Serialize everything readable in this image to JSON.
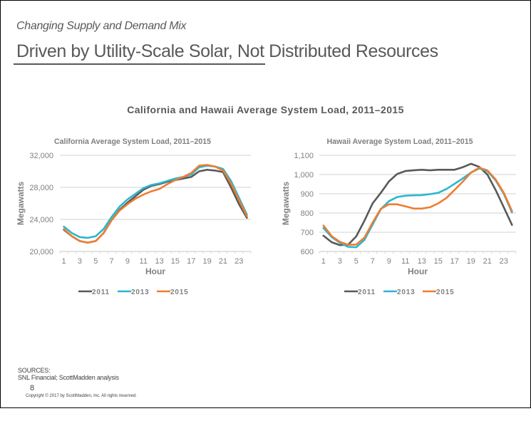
{
  "header": {
    "kicker": "Changing Supply and Demand Mix",
    "headline": "Driven by Utility-Scale Solar, Not Distributed Resources"
  },
  "main_title": "California and Hawaii Average System Load, 2011–2015",
  "colors": {
    "2011": "#595959",
    "2013": "#2ab7ce",
    "2015": "#ed7d31",
    "gridline": "#d9d9d9",
    "axis_text": "#808080",
    "title_text": "#7f7f7f"
  },
  "chart_data": [
    {
      "type": "line",
      "title": "California Average System Load, 2011–2015",
      "xlabel": "Hour",
      "ylabel": "Megawatts",
      "x": [
        1,
        2,
        3,
        4,
        5,
        6,
        7,
        8,
        9,
        10,
        11,
        12,
        13,
        14,
        15,
        16,
        17,
        18,
        19,
        20,
        21,
        22,
        23,
        24
      ],
      "xtick_labels": [
        "1",
        "3",
        "5",
        "7",
        "9",
        "11",
        "13",
        "15",
        "17",
        "19",
        "21",
        "23"
      ],
      "ylim": [
        20000,
        32000
      ],
      "yticks": [
        20000,
        24000,
        28000,
        32000
      ],
      "ytick_labels": [
        "20,000",
        "24,000",
        "28,000",
        "32,000"
      ],
      "grid": true,
      "legend": "bottom",
      "series": [
        {
          "name": "2011",
          "values": [
            22700,
            21900,
            21300,
            21100,
            21300,
            22300,
            23900,
            25200,
            26100,
            26900,
            27700,
            28200,
            28400,
            28700,
            28900,
            29100,
            29300,
            30000,
            30200,
            30100,
            29900,
            28000,
            25900,
            24200
          ]
        },
        {
          "name": "2013",
          "values": [
            23100,
            22300,
            21800,
            21700,
            21900,
            22800,
            24300,
            25600,
            26500,
            27200,
            27900,
            28300,
            28500,
            28800,
            29100,
            29300,
            29600,
            30500,
            30700,
            30600,
            30300,
            28800,
            26700,
            24600
          ]
        },
        {
          "name": "2015",
          "values": [
            22800,
            21900,
            21300,
            21100,
            21300,
            22300,
            23900,
            25100,
            25900,
            26600,
            27100,
            27500,
            27800,
            28400,
            28900,
            29300,
            29800,
            30700,
            30800,
            30600,
            30100,
            28500,
            26400,
            24400
          ]
        }
      ]
    },
    {
      "type": "line",
      "title": "Hawaii Average System Load, 2011–2015",
      "xlabel": "Hour",
      "ylabel": "Megawatts",
      "x": [
        1,
        2,
        3,
        4,
        5,
        6,
        7,
        8,
        9,
        10,
        11,
        12,
        13,
        14,
        15,
        16,
        17,
        18,
        19,
        20,
        21,
        22,
        23,
        24
      ],
      "xtick_labels": [
        "1",
        "3",
        "5",
        "7",
        "9",
        "11",
        "13",
        "15",
        "17",
        "19",
        "21",
        "23"
      ],
      "ylim": [
        600,
        1100
      ],
      "yticks": [
        600,
        700,
        800,
        900,
        1000,
        1100
      ],
      "ytick_labels": [
        "600",
        "700",
        "800",
        "900",
        "1,000",
        "1,100"
      ],
      "grid": true,
      "legend": "bottom",
      "series": [
        {
          "name": "2011",
          "values": [
            682,
            648,
            633,
            635,
            678,
            760,
            850,
            905,
            965,
            1003,
            1018,
            1022,
            1025,
            1022,
            1025,
            1025,
            1025,
            1038,
            1056,
            1040,
            1000,
            920,
            830,
            738
          ]
        },
        {
          "name": "2013",
          "values": [
            722,
            675,
            645,
            624,
            622,
            660,
            740,
            820,
            862,
            883,
            890,
            892,
            893,
            898,
            905,
            925,
            952,
            980,
            1010,
            1032,
            1018,
            970,
            900,
            803
          ]
        },
        {
          "name": "2015",
          "values": [
            735,
            680,
            650,
            635,
            636,
            672,
            750,
            822,
            845,
            845,
            835,
            823,
            823,
            830,
            850,
            878,
            920,
            963,
            1010,
            1035,
            1022,
            975,
            905,
            810
          ]
        }
      ]
    }
  ],
  "footer": {
    "sources_label": "SOURCES:",
    "sources_text": "SNL Financial; ScottMadden analysis",
    "page_number": "8",
    "copyright": "Copyright © 2017 by ScottMadden, Inc. All rights reserved."
  }
}
